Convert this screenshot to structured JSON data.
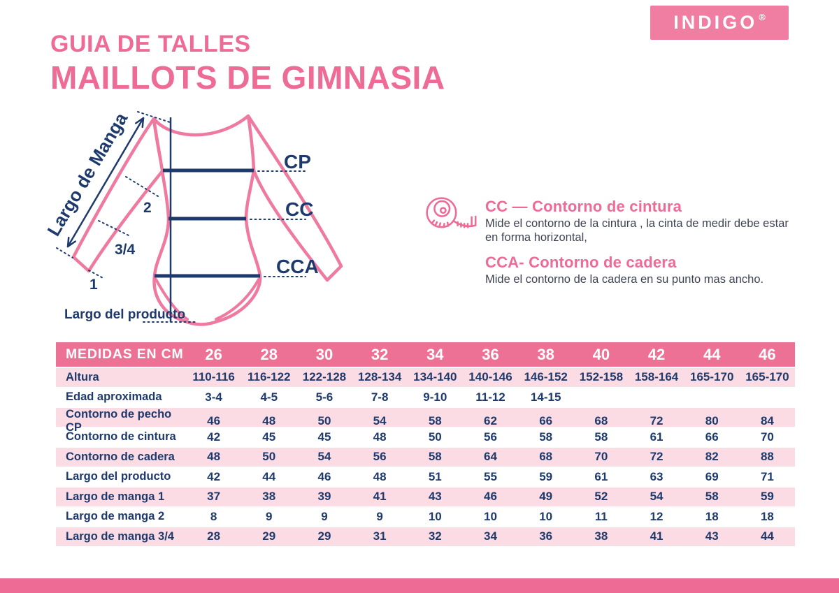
{
  "brand": {
    "logo_text": "INDIGO",
    "registered_mark": "®"
  },
  "header": {
    "title_line1": "GUIA DE TALLES",
    "title_line2": "MAILLOTS DE GIMNASIA"
  },
  "diagram": {
    "sleeve_arrow_label": "Largo de Manga",
    "mark_2": "2",
    "mark_34": "3/4",
    "mark_1": "1",
    "cp_label": "CP",
    "cc_label": "CC",
    "cca_label": "CCA",
    "product_length_label": "Largo del producto"
  },
  "legend": {
    "icon": "measuring-tape-icon",
    "items": [
      {
        "title": "CC — Contorno de cintura",
        "description": "Mide el contorno de la cintura , la cinta de medir debe estar en forma horizontal,"
      },
      {
        "title": "CCA- Contorno de cadera",
        "description": "Mide el contorno de la cadera en su punto mas ancho."
      }
    ]
  },
  "table": {
    "header_label": "MEDIDAS EN CM",
    "sizes": [
      "26",
      "28",
      "30",
      "32",
      "34",
      "36",
      "38",
      "40",
      "42",
      "44",
      "46"
    ],
    "rows": [
      {
        "label": "Altura",
        "values": [
          "110-116",
          "116-122",
          "122-128",
          "128-134",
          "134-140",
          "140-146",
          "146-152",
          "152-158",
          "158-164",
          "165-170",
          "165-170"
        ]
      },
      {
        "label": "Edad aproximada",
        "values": [
          "3-4",
          "4-5",
          "5-6",
          "7-8",
          "9-10",
          "11-12",
          "14-15",
          "",
          "",
          "",
          ""
        ]
      },
      {
        "label": "Contorno de pecho CP",
        "values": [
          "46",
          "48",
          "50",
          "54",
          "58",
          "62",
          "66",
          "68",
          "72",
          "80",
          "84"
        ]
      },
      {
        "label": "Contorno de cintura",
        "values": [
          "42",
          "45",
          "45",
          "48",
          "50",
          "56",
          "58",
          "58",
          "61",
          "66",
          "70"
        ]
      },
      {
        "label": "Contorno de cadera",
        "values": [
          "48",
          "50",
          "54",
          "56",
          "58",
          "64",
          "68",
          "70",
          "72",
          "82",
          "88"
        ]
      },
      {
        "label": "Largo del producto",
        "values": [
          "42",
          "44",
          "46",
          "48",
          "51",
          "55",
          "59",
          "61",
          "63",
          "69",
          "71"
        ]
      },
      {
        "label": "Largo de manga 1",
        "values": [
          "37",
          "38",
          "39",
          "41",
          "43",
          "46",
          "49",
          "52",
          "54",
          "58",
          "59"
        ]
      },
      {
        "label": "Largo de manga 2",
        "values": [
          "8",
          "9",
          "9",
          "9",
          "10",
          "10",
          "10",
          "11",
          "12",
          "18",
          "18"
        ]
      },
      {
        "label": "Largo de manga 3/4",
        "values": [
          "28",
          "29",
          "29",
          "31",
          "32",
          "34",
          "36",
          "38",
          "41",
          "43",
          "44"
        ]
      }
    ]
  },
  "colors": {
    "accent_pink": "#ee6b95",
    "logo_pink": "#ef7ea2",
    "header_pink": "#ec7195",
    "row_pink": "#fbdce4",
    "navy": "#1e3a6d",
    "body_text": "#3e4454",
    "leotard_pink": "#f0799f"
  }
}
